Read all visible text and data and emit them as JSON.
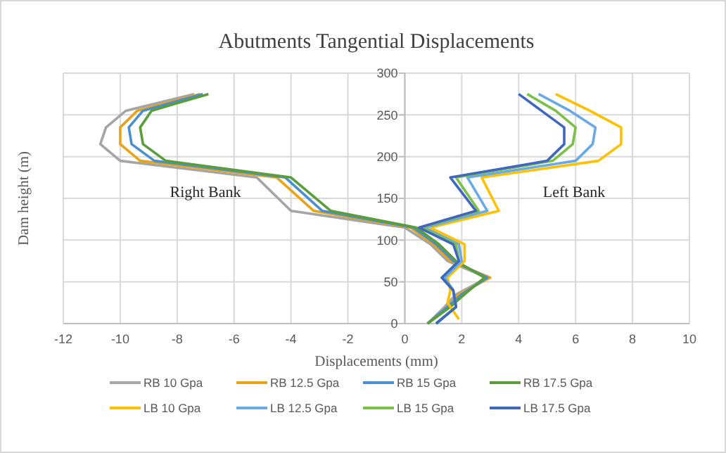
{
  "chart_data": {
    "type": "line",
    "title": "Abutments Tangential Displacements",
    "xlabel": "Displacements (mm)",
    "ylabel": "Dam height (m)",
    "xlim": [
      -12,
      10
    ],
    "xticks": [
      -12,
      -10,
      -8,
      -6,
      -4,
      -2,
      0,
      2,
      4,
      6,
      8,
      10
    ],
    "ylim": [
      0,
      300
    ],
    "yticks": [
      0,
      50,
      100,
      150,
      200,
      250,
      300
    ],
    "grid": true,
    "legend": "bottom",
    "marker": "none",
    "annotations": [
      "Right Bank",
      "Left Bank"
    ],
    "series": [
      {
        "name": "RB 10 Gpa",
        "color": "#a5a5a5",
        "x": [
          -7.4,
          -9.8,
          -10.5,
          -10.7,
          -10.0,
          -5.2,
          -4.0,
          0.0,
          0.9,
          1.5,
          2.9,
          1.8,
          1.4,
          0.8
        ],
        "values": [
          275,
          255,
          235,
          215,
          195,
          175,
          135,
          115,
          95,
          75,
          55,
          35,
          20,
          0
        ]
      },
      {
        "name": "RB 12.5 Gpa",
        "color": "#e8a317",
        "x": [
          -7.2,
          -9.4,
          -10.0,
          -10.0,
          -9.3,
          -4.5,
          -3.2,
          0.2,
          1.0,
          1.6,
          3.0,
          1.9,
          1.5,
          0.8
        ],
        "values": [
          275,
          255,
          235,
          215,
          195,
          175,
          135,
          115,
          95,
          75,
          55,
          35,
          20,
          0
        ]
      },
      {
        "name": "RB 15 Gpa",
        "color": "#4a8fd0",
        "x": [
          -7.1,
          -9.2,
          -9.7,
          -9.6,
          -8.8,
          -4.2,
          -2.9,
          0.3,
          1.1,
          1.7,
          2.9,
          2.0,
          1.5,
          0.8
        ],
        "values": [
          275,
          255,
          235,
          215,
          195,
          175,
          135,
          115,
          95,
          75,
          55,
          35,
          20,
          0
        ]
      },
      {
        "name": "RB 17.5 Gpa",
        "color": "#5a9e3a",
        "x": [
          -6.9,
          -8.9,
          -9.3,
          -9.2,
          -8.4,
          -4.0,
          -2.6,
          0.4,
          1.2,
          1.8,
          2.8,
          2.1,
          1.6,
          0.8
        ],
        "values": [
          275,
          255,
          235,
          215,
          195,
          175,
          135,
          115,
          95,
          75,
          55,
          35,
          20,
          0
        ]
      },
      {
        "name": "LB 10 Gpa",
        "color": "#ffc000",
        "x": [
          5.3,
          6.5,
          7.6,
          7.6,
          6.8,
          2.7,
          3.3,
          0.9,
          2.1,
          2.1,
          1.5,
          1.6,
          1.5,
          1.9
        ],
        "values": [
          275,
          255,
          235,
          215,
          195,
          175,
          135,
          115,
          95,
          75,
          55,
          40,
          25,
          5
        ]
      },
      {
        "name": "LB 12.5 Gpa",
        "color": "#6aaae4",
        "x": [
          4.7,
          5.8,
          6.7,
          6.6,
          6.0,
          2.2,
          2.9,
          0.7,
          1.9,
          2.0,
          1.4,
          1.7,
          1.8,
          1.1
        ],
        "values": [
          275,
          255,
          235,
          215,
          195,
          175,
          135,
          115,
          95,
          75,
          55,
          40,
          20,
          0
        ]
      },
      {
        "name": "LB 15 Gpa",
        "color": "#7cc047",
        "x": [
          4.3,
          5.3,
          6.0,
          5.9,
          5.2,
          1.8,
          2.6,
          0.6,
          1.8,
          1.9,
          1.3,
          1.7,
          1.8,
          1.1
        ],
        "values": [
          275,
          255,
          235,
          215,
          195,
          175,
          135,
          115,
          95,
          75,
          55,
          40,
          20,
          0
        ]
      },
      {
        "name": "LB 17.5 Gpa",
        "color": "#3f67c0",
        "x": [
          4.0,
          4.8,
          5.6,
          5.6,
          5.0,
          1.6,
          2.5,
          0.5,
          1.7,
          1.9,
          1.3,
          1.7,
          1.8,
          1.1
        ],
        "values": [
          275,
          255,
          235,
          215,
          195,
          175,
          135,
          115,
          95,
          75,
          55,
          40,
          20,
          0
        ]
      }
    ]
  }
}
